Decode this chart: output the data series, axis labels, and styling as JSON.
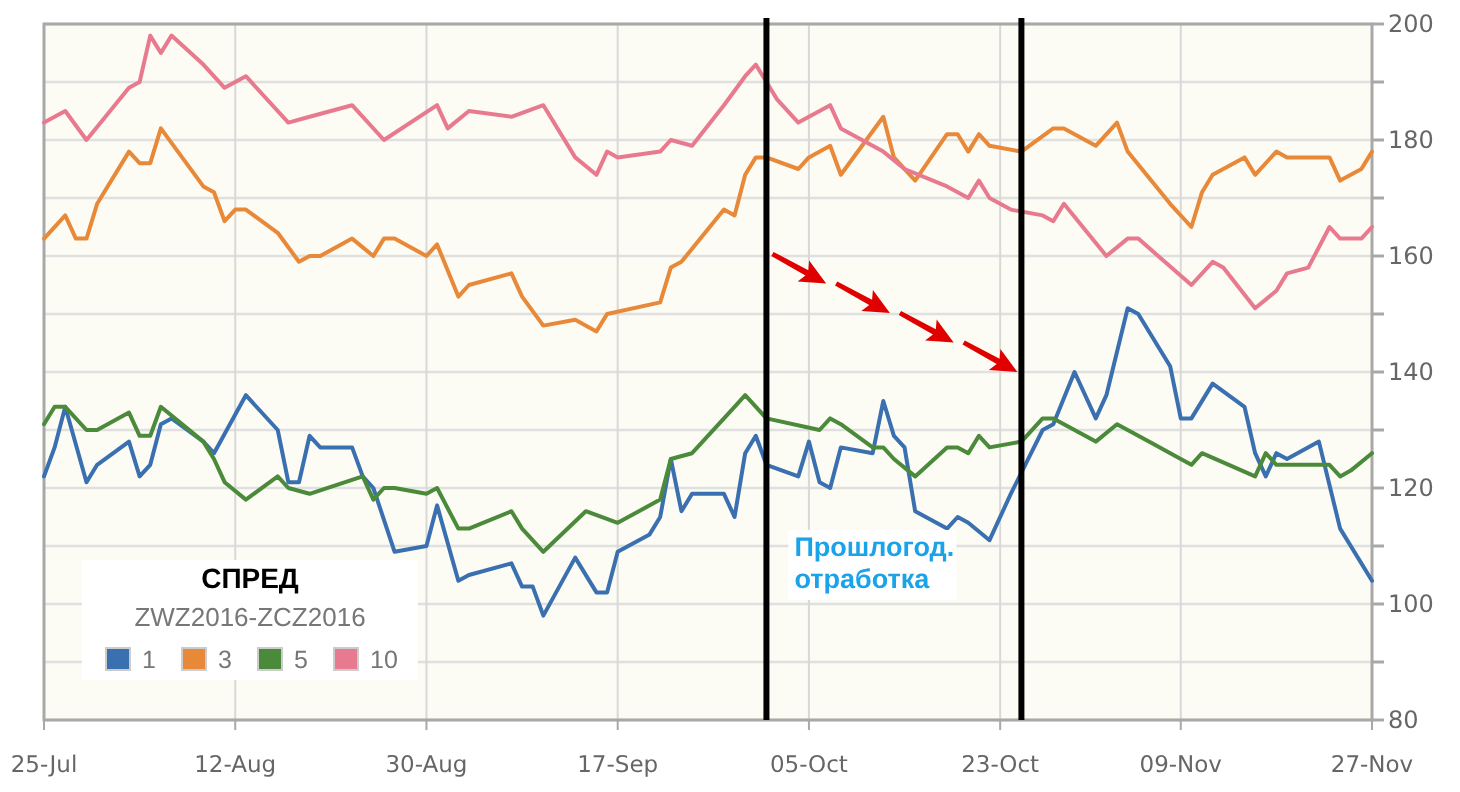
{
  "chart_data": {
    "type": "line",
    "legend_title": "СПРЕД",
    "subtitle": "ZWZ2016-ZCZ2016",
    "annotations": [
      "Прошлогод. отработка"
    ],
    "xlim": [
      "--07-25",
      "--11-27"
    ],
    "xticks": [
      {
        "value": "--07-25",
        "label": "25-Jul"
      },
      {
        "value": "--08-12",
        "label": "12-Aug"
      },
      {
        "value": "--08-30",
        "label": "30-Aug"
      },
      {
        "value": "--09-17",
        "label": "17-Sep"
      },
      {
        "value": "--10-05",
        "label": "05-Oct"
      },
      {
        "value": "--10-23",
        "label": "23-Oct"
      },
      {
        "value": "--11-09",
        "label": "09-Nov"
      },
      {
        "value": "--11-27",
        "label": "27-Nov"
      }
    ],
    "ylim": [
      80,
      200
    ],
    "yticks": [
      80,
      {
        "value": 90,
        "label": null
      },
      100,
      {
        "value": 110,
        "label": null
      },
      120,
      {
        "value": 130,
        "label": null
      },
      140,
      {
        "value": 150,
        "label": null
      },
      160,
      {
        "value": 170,
        "label": null
      },
      180,
      {
        "value": 190,
        "label": null
      },
      200
    ],
    "grid": true,
    "legend": "bottom left",
    "marker": "none",
    "line_style": "solid",
    "ref_lines": [
      {
        "axis": "x",
        "value": "--10-01",
        "label": null,
        "color": "#000000"
      },
      {
        "axis": "x",
        "value": "--10-25",
        "label": null,
        "color": "#000000"
      }
    ],
    "series": [
      {
        "name": "1",
        "color": "#3a70b0",
        "x": [
          "--07-25",
          "--07-26",
          "--07-27",
          "--07-29",
          "--07-30",
          "--08-02",
          "--08-03",
          "--08-04",
          "--08-05",
          "--08-06",
          "--08-09",
          "--08-10",
          "--08-13",
          "--08-16",
          "--08-17",
          "--08-18",
          "--08-19",
          "--08-20",
          "--08-23",
          "--08-24",
          "--08-25",
          "--08-27",
          "--08-30",
          "--08-31",
          "--09-02",
          "--09-03",
          "--09-07",
          "--09-08",
          "--09-09",
          "--09-10",
          "--09-13",
          "--09-15",
          "--09-16",
          "--09-17",
          "--09-20",
          "--09-21",
          "--09-22",
          "--09-23",
          "--09-24",
          "--09-27",
          "--09-28",
          "--09-29",
          "--09-30",
          "--10-01",
          "--10-04",
          "--10-05",
          "--10-06",
          "--10-07",
          "--10-08",
          "--10-11",
          "--10-12",
          "--10-13",
          "--10-14",
          "--10-15",
          "--10-18",
          "--10-19",
          "--10-20",
          "--10-22",
          "--10-24",
          "--10-27",
          "--10-28",
          "--10-30",
          "--11-01",
          "--11-02",
          "--11-04",
          "--11-05",
          "--11-08",
          "--11-09",
          "--11-10",
          "--11-12",
          "--11-15",
          "--11-16",
          "--11-17",
          "--11-18",
          "--11-19",
          "--11-22",
          "--11-24",
          "--11-27"
        ],
        "values": [
          122,
          127,
          134,
          121,
          124,
          128,
          122,
          124,
          131,
          132,
          128,
          126,
          136,
          130,
          121,
          121,
          129,
          127,
          127,
          122,
          120,
          109,
          110,
          117,
          104,
          105,
          107,
          103,
          103,
          98,
          108,
          102,
          102,
          109,
          112,
          115,
          125,
          116,
          119,
          119,
          115,
          126,
          129,
          124,
          122,
          128,
          121,
          120,
          127,
          126,
          135,
          129,
          127,
          116,
          113,
          115,
          114,
          111,
          119,
          130,
          131,
          140,
          132,
          136,
          151,
          150,
          141,
          132,
          132,
          138,
          134,
          126,
          122,
          126,
          125,
          128,
          113,
          104
        ]
      },
      {
        "name": "3",
        "color": "#e8893a",
        "x": [
          "--07-25",
          "--07-27",
          "--07-28",
          "--07-29",
          "--07-30",
          "--08-02",
          "--08-03",
          "--08-04",
          "--08-05",
          "--08-09",
          "--08-10",
          "--08-11",
          "--08-12",
          "--08-13",
          "--08-16",
          "--08-18",
          "--08-19",
          "--08-20",
          "--08-23",
          "--08-25",
          "--08-26",
          "--08-27",
          "--08-30",
          "--08-31",
          "--09-02",
          "--09-03",
          "--09-07",
          "--09-08",
          "--09-10",
          "--09-13",
          "--09-15",
          "--09-16",
          "--09-21",
          "--09-22",
          "--09-23",
          "--09-27",
          "--09-28",
          "--09-29",
          "--09-30",
          "--10-01",
          "--10-04",
          "--10-05",
          "--10-07",
          "--10-08",
          "--10-12",
          "--10-13",
          "--10-15",
          "--10-18",
          "--10-19",
          "--10-20",
          "--10-21",
          "--10-22",
          "--10-25",
          "--10-28",
          "--10-29",
          "--11-01",
          "--11-03",
          "--11-04",
          "--11-08",
          "--11-10",
          "--11-11",
          "--11-12",
          "--11-15",
          "--11-16",
          "--11-18",
          "--11-19",
          "--11-23",
          "--11-24",
          "--11-26",
          "--11-27"
        ],
        "values": [
          163,
          167,
          163,
          163,
          169,
          178,
          176,
          176,
          182,
          172,
          171,
          166,
          168,
          168,
          164,
          159,
          160,
          160,
          163,
          160,
          163,
          163,
          160,
          162,
          153,
          155,
          157,
          153,
          148,
          149,
          147,
          150,
          152,
          158,
          159,
          168,
          167,
          174,
          177,
          177,
          175,
          177,
          179,
          174,
          184,
          177,
          173,
          181,
          181,
          178,
          181,
          179,
          178,
          182,
          182,
          179,
          183,
          178,
          169,
          165,
          171,
          174,
          177,
          174,
          178,
          177,
          177,
          173,
          175,
          178
        ]
      },
      {
        "name": "5",
        "color": "#4a8a3a",
        "x": [
          "--07-25",
          "--07-26",
          "--07-27",
          "--07-29",
          "--07-30",
          "--08-02",
          "--08-03",
          "--08-04",
          "--08-05",
          "--08-09",
          "--08-10",
          "--08-11",
          "--08-13",
          "--08-16",
          "--08-17",
          "--08-19",
          "--08-24",
          "--08-25",
          "--08-26",
          "--08-27",
          "--08-30",
          "--08-31",
          "--09-02",
          "--09-03",
          "--09-07",
          "--09-08",
          "--09-10",
          "--09-14",
          "--09-17",
          "--09-21",
          "--09-22",
          "--09-24",
          "--09-28",
          "--09-29",
          "--10-01",
          "--10-06",
          "--10-07",
          "--10-08",
          "--10-11",
          "--10-12",
          "--10-13",
          "--10-15",
          "--10-18",
          "--10-19",
          "--10-20",
          "--10-21",
          "--10-22",
          "--10-25",
          "--10-27",
          "--10-28",
          "--10-29",
          "--11-01",
          "--11-03",
          "--11-04",
          "--11-06",
          "--11-09",
          "--11-10",
          "--11-11",
          "--11-16",
          "--11-17",
          "--11-18",
          "--11-20",
          "--11-23",
          "--11-24",
          "--11-25",
          "--11-27"
        ],
        "values": [
          131,
          134,
          134,
          130,
          130,
          133,
          129,
          129,
          134,
          128,
          125,
          121,
          118,
          122,
          120,
          119,
          122,
          118,
          120,
          120,
          119,
          120,
          113,
          113,
          116,
          113,
          109,
          116,
          114,
          118,
          125,
          126,
          134,
          136,
          132,
          130,
          132,
          131,
          127,
          127,
          125,
          122,
          127,
          127,
          126,
          129,
          127,
          128,
          132,
          132,
          131,
          128,
          131,
          130,
          128,
          125,
          124,
          126,
          122,
          126,
          124,
          124,
          124,
          122,
          123,
          126
        ]
      },
      {
        "name": "10",
        "color": "#e87a8f",
        "x": [
          "--07-25",
          "--07-27",
          "--07-29",
          "--08-02",
          "--08-03",
          "--08-04",
          "--08-05",
          "--08-06",
          "--08-09",
          "--08-11",
          "--08-13",
          "--08-17",
          "--08-19",
          "--08-23",
          "--08-26",
          "--08-31",
          "--09-01",
          "--09-03",
          "--09-07",
          "--09-10",
          "--09-13",
          "--09-15",
          "--09-16",
          "--09-17",
          "--09-21",
          "--09-22",
          "--09-24",
          "--09-27",
          "--09-29",
          "--09-30",
          "--10-01",
          "--10-02",
          "--10-04",
          "--10-05",
          "--10-07",
          "--10-08",
          "--10-12",
          "--10-14",
          "--10-18",
          "--10-20",
          "--10-21",
          "--10-22",
          "--10-24",
          "--10-27",
          "--10-28",
          "--10-29",
          "--11-02",
          "--11-04",
          "--11-05",
          "--11-10",
          "--11-12",
          "--11-13",
          "--11-16",
          "--11-18",
          "--11-19",
          "--11-21",
          "--11-23",
          "--11-24",
          "--11-26",
          "--11-27"
        ],
        "values": [
          183,
          185,
          180,
          189,
          190,
          198,
          195,
          198,
          193,
          189,
          191,
          183,
          184,
          186,
          180,
          186,
          182,
          185,
          184,
          186,
          177,
          174,
          178,
          177,
          178,
          180,
          179,
          186,
          191,
          193,
          190,
          187,
          183,
          184,
          186,
          182,
          178,
          175,
          172,
          170,
          173,
          170,
          168,
          167,
          166,
          169,
          160,
          163,
          163,
          155,
          159,
          158,
          151,
          154,
          157,
          158,
          165,
          163,
          163,
          165
        ]
      }
    ]
  }
}
